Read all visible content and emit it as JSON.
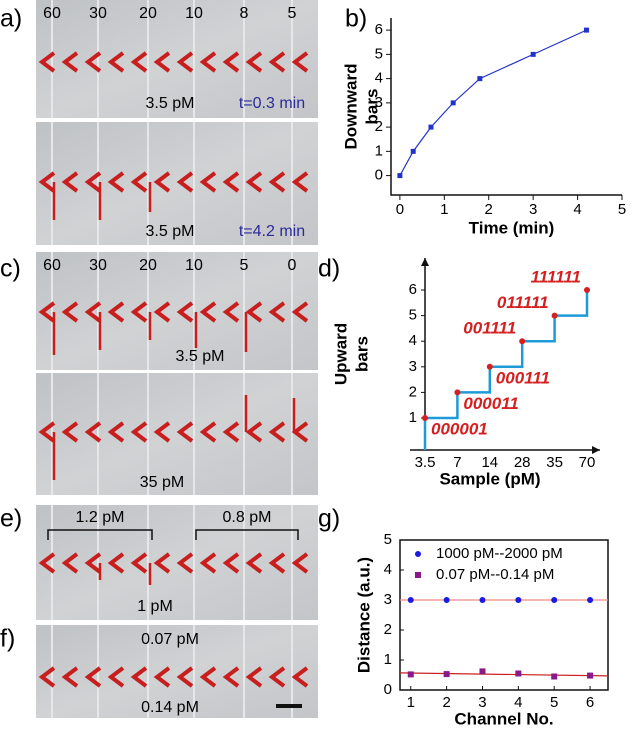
{
  "panel_labels": [
    "a)",
    "b)",
    "c)",
    "d)",
    "e)",
    "f)",
    "g)"
  ],
  "photos": {
    "a_top": {
      "channels": [
        "60",
        "30",
        "20",
        "10",
        "8",
        "5"
      ],
      "concentration": "3.5 pM",
      "time": "t=0.3 min"
    },
    "a_bottom": {
      "concentration": "3.5 pM",
      "time": "t=4.2 min"
    },
    "c_top": {
      "channels": [
        "60",
        "30",
        "20",
        "10",
        "5",
        "0"
      ],
      "concentration": "3.5 pM"
    },
    "c_bottom": {
      "concentration": "35 pM"
    },
    "e": {
      "left": "1.2 pM",
      "right": "0.8 pM",
      "bottom": "1 pM"
    },
    "f": {
      "top": "0.07 pM",
      "bottom": "0.14 pM"
    }
  },
  "chart_data": [
    {
      "type": "line",
      "x_label": "Time (min)",
      "y_label": [
        "Downward",
        "bars"
      ],
      "x": [
        0,
        0.3,
        0.7,
        1.2,
        1.8,
        3,
        4.2
      ],
      "series": [
        {
          "values": [
            0,
            1,
            2,
            3,
            4,
            5,
            6
          ],
          "color": "#2233cc"
        }
      ],
      "xlim": [
        -0.2,
        5
      ],
      "ylim": [
        -0.8,
        6.5
      ],
      "xticks": [
        0,
        1,
        2,
        3,
        4,
        5
      ],
      "yticks": [
        0,
        1,
        2,
        3,
        4,
        5,
        6
      ]
    },
    {
      "type": "step",
      "x_label": "Sample (pM)",
      "y_label": [
        "Upward",
        "bars"
      ],
      "categories": [
        "3.5",
        "7",
        "14",
        "28",
        "35",
        "70"
      ],
      "values": [
        1,
        2,
        3,
        4,
        5,
        6
      ],
      "codes": [
        "000001",
        "000011",
        "000111",
        "001111",
        "011111",
        "111111"
      ],
      "line_color": "#1e9bd7",
      "dot_color": "#d42020",
      "code_color": "#d42020",
      "ylim": [
        -0.25,
        7.25
      ],
      "yticks": [
        1,
        2,
        3,
        4,
        5,
        6
      ]
    },
    {
      "type": "scatter",
      "x_label": "Channel No.",
      "y_label": "Distance (a.u.)",
      "x": [
        1,
        2,
        3,
        4,
        5,
        6
      ],
      "series": [
        {
          "name": "1000 pM--2000 pM",
          "color": "#1a1ae0",
          "marker": "circle",
          "values": [
            3,
            3,
            3,
            3,
            3,
            3
          ],
          "fit": {
            "x": [
              0.7,
              6.5
            ],
            "y": [
              3,
              3
            ]
          },
          "fit_color": "#f08a8a"
        },
        {
          "name": "0.07 pM--0.14 pM",
          "color": "#8a1a8a",
          "marker": "square",
          "values": [
            0.52,
            0.53,
            0.62,
            0.55,
            0.45,
            0.48
          ],
          "fit": {
            "x": [
              0.7,
              6.5
            ],
            "y": [
              0.57,
              0.47
            ]
          },
          "fit_color": "#cc2020"
        }
      ],
      "xlim": [
        0.7,
        6.5
      ],
      "ylim": [
        0,
        5
      ],
      "xticks": [
        1,
        2,
        3,
        4,
        5,
        6
      ],
      "yticks": [
        0,
        1,
        2,
        3,
        4,
        5
      ],
      "legend": "upper right"
    }
  ]
}
